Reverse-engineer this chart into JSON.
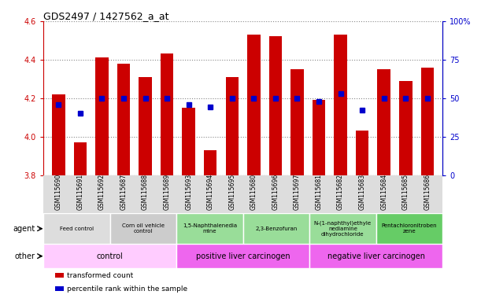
{
  "title": "GDS2497 / 1427562_a_at",
  "samples": [
    "GSM115690",
    "GSM115691",
    "GSM115692",
    "GSM115687",
    "GSM115688",
    "GSM115689",
    "GSM115693",
    "GSM115694",
    "GSM115695",
    "GSM115680",
    "GSM115696",
    "GSM115697",
    "GSM115681",
    "GSM115682",
    "GSM115683",
    "GSM115684",
    "GSM115685",
    "GSM115686"
  ],
  "transformed_count": [
    4.22,
    3.97,
    4.41,
    4.38,
    4.31,
    4.43,
    4.15,
    3.93,
    4.31,
    4.53,
    4.52,
    4.35,
    4.19,
    4.53,
    4.03,
    4.35,
    4.29,
    4.36
  ],
  "percentile_rank": [
    46,
    40,
    50,
    50,
    50,
    50,
    46,
    44,
    50,
    50,
    50,
    50,
    48,
    53,
    42,
    50,
    50,
    50
  ],
  "bar_color": "#cc0000",
  "dot_color": "#0000cc",
  "ylim_left": [
    3.8,
    4.6
  ],
  "ylim_right": [
    0,
    100
  ],
  "yticks_left": [
    3.8,
    4.0,
    4.2,
    4.4,
    4.6
  ],
  "yticks_right": [
    0,
    25,
    50,
    75,
    100
  ],
  "ytick_labels_right": [
    "0",
    "25",
    "50",
    "75",
    "100%"
  ],
  "agent_groups": [
    {
      "label": "Feed control",
      "start": 0,
      "end": 3,
      "color": "#dddddd"
    },
    {
      "label": "Corn oil vehicle\ncontrol",
      "start": 3,
      "end": 6,
      "color": "#cccccc"
    },
    {
      "label": "1,5-Naphthalenedia\nmine",
      "start": 6,
      "end": 9,
      "color": "#99dd99"
    },
    {
      "label": "2,3-Benzofuran",
      "start": 9,
      "end": 12,
      "color": "#99dd99"
    },
    {
      "label": "N-(1-naphthyl)ethyle\nnediamine\ndihydrochloride",
      "start": 12,
      "end": 15,
      "color": "#99dd99"
    },
    {
      "label": "Pentachloronitroben\nzene",
      "start": 15,
      "end": 18,
      "color": "#66cc66"
    }
  ],
  "other_groups": [
    {
      "label": "control",
      "start": 0,
      "end": 6,
      "color": "#ffccff"
    },
    {
      "label": "positive liver carcinogen",
      "start": 6,
      "end": 12,
      "color": "#ee66ee"
    },
    {
      "label": "negative liver carcinogen",
      "start": 12,
      "end": 18,
      "color": "#ee66ee"
    }
  ],
  "agent_label": "agent",
  "other_label": "other",
  "legend_items": [
    {
      "label": "transformed count",
      "color": "#cc0000"
    },
    {
      "label": "percentile rank within the sample",
      "color": "#0000cc"
    }
  ],
  "background_color": "#ffffff",
  "plot_bg": "#ffffff",
  "xtick_bg": "#dddddd",
  "grid_color": "#888888"
}
